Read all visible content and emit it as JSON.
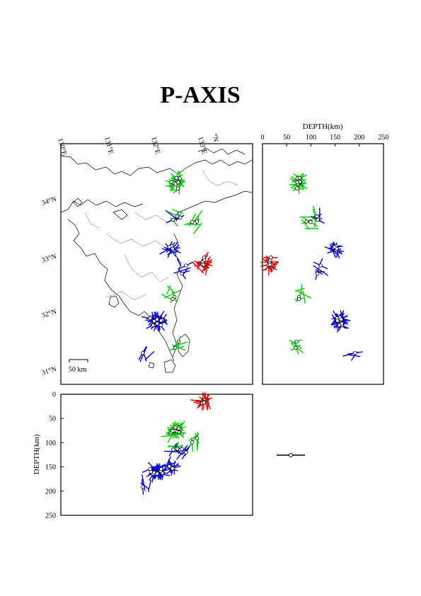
{
  "title": "P-AXIS",
  "chart_data": [
    {
      "type": "map",
      "name": "map-panel",
      "lon_ticks": [
        "130°E",
        "131°E",
        "132°E",
        "133°E"
      ],
      "lat_ticks": [
        "34°N",
        "33°N",
        "32°N",
        "31°N"
      ],
      "corner_label": "°N",
      "lon_range": [
        129.8,
        133.9
      ],
      "lat_range": [
        30.8,
        34.8
      ],
      "scale_bar_label": "50 km",
      "depth_colors": {
        "shallow": "#e00000",
        "intermediate": "#00cc00",
        "deep": "#0000dd"
      }
    },
    {
      "type": "scatter",
      "name": "latitude-depth-section",
      "xlabel": "DEPTH(km)",
      "xticks": [
        0,
        50,
        100,
        150,
        200,
        250
      ],
      "xlim": [
        0,
        250
      ],
      "ylim": [
        30.8,
        34.8
      ]
    },
    {
      "type": "scatter",
      "name": "longitude-depth-section",
      "ylabel": "DEPTH(km)",
      "yticks": [
        0,
        50,
        100,
        150,
        200,
        250
      ],
      "ylim": [
        0,
        250
      ],
      "xlim": [
        129.8,
        133.9
      ]
    }
  ],
  "legend": {
    "marker": "P-axis symbol"
  }
}
